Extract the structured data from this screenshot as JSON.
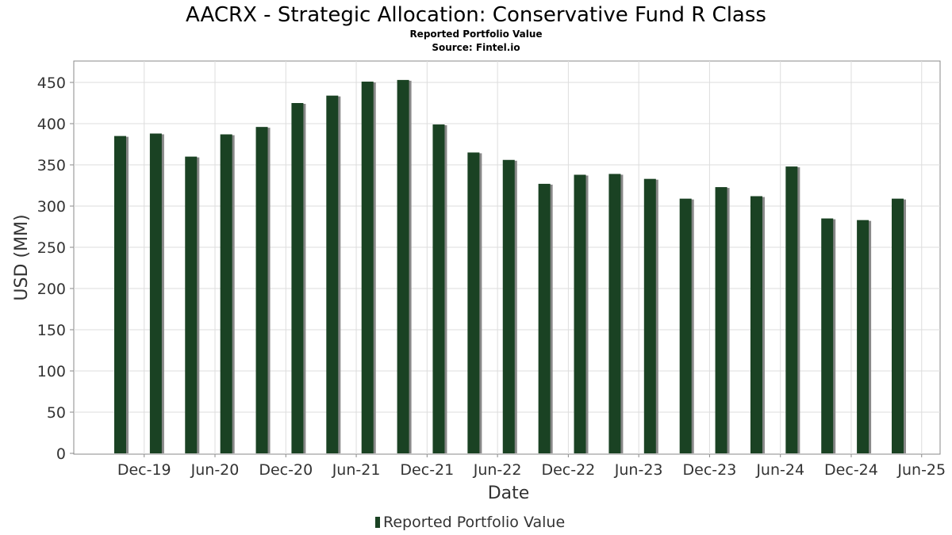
{
  "chart_data": {
    "type": "bar",
    "title": "AACRX - Strategic Allocation: Conservative Fund R Class",
    "subtitle": "Reported Portfolio Value",
    "source": "Source: Fintel.io",
    "xlabel": "Date",
    "ylabel": "USD (MM)",
    "ylim": [
      0,
      475
    ],
    "yticks": [
      0,
      50,
      100,
      150,
      200,
      250,
      300,
      350,
      400,
      450
    ],
    "x_tick_labels": [
      "Dec-19",
      "Jun-20",
      "Dec-20",
      "Jun-21",
      "Dec-21",
      "Jun-22",
      "Dec-22",
      "Jun-23",
      "Dec-23",
      "Jun-24",
      "Dec-24",
      "Jun-25"
    ],
    "grid": true,
    "legend_position": "bottom",
    "series": [
      {
        "name": "Reported Portfolio Value",
        "color": "#1a4223",
        "shadow_color": "#888888",
        "x": [
          "2019-09-30",
          "2019-12-31",
          "2020-03-31",
          "2020-06-30",
          "2020-09-30",
          "2020-12-31",
          "2021-03-31",
          "2021-06-30",
          "2021-09-30",
          "2021-12-31",
          "2022-03-31",
          "2022-06-30",
          "2022-09-30",
          "2022-12-31",
          "2023-03-31",
          "2023-06-30",
          "2023-09-30",
          "2023-12-31",
          "2024-03-31",
          "2024-06-30",
          "2024-09-30",
          "2024-12-31",
          "2025-03-31"
        ],
        "values": [
          385,
          388,
          360,
          387,
          396,
          425,
          434,
          451,
          453,
          399,
          365,
          356,
          327,
          338,
          339,
          333,
          309,
          323,
          312,
          348,
          285,
          283,
          309
        ]
      }
    ]
  }
}
